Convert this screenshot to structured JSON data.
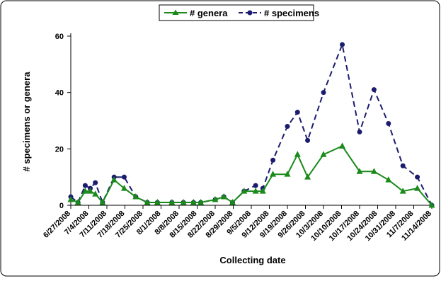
{
  "chart_data": {
    "type": "line",
    "title": "",
    "xlabel": "Collecting date",
    "ylabel": "# specimens or genera",
    "ylim": [
      0,
      60
    ],
    "yticks": [
      0,
      20,
      40,
      60
    ],
    "grid": false,
    "legend_position": "top-center",
    "x_tick_labels": [
      "6/27/2008",
      "7/4/2008",
      "7/11/2008",
      "7/18/2008",
      "7/25/2008",
      "8/1/2008",
      "8/8/2008",
      "8/15/2008",
      "8/22/2008",
      "8/29/2008",
      "9/5/2008",
      "9/12/2008",
      "9/19/2008",
      "9/26/2008",
      "10/3/2008",
      "10/10/2008",
      "10/17/2008",
      "10/24/2008",
      "10/31/2008",
      "11/7/2008",
      "11/14/2008"
    ],
    "series": [
      {
        "name": "# genera",
        "color": "#1a8a1a",
        "marker": "triangle",
        "line_style": "solid",
        "points": [
          [
            0,
            2
          ],
          [
            0.5,
            1
          ],
          [
            1,
            5
          ],
          [
            1.35,
            5
          ],
          [
            1.7,
            4
          ],
          [
            2.2,
            1
          ],
          [
            3,
            9
          ],
          [
            3.7,
            6
          ],
          [
            4.5,
            3
          ],
          [
            5.3,
            1
          ],
          [
            6,
            1
          ],
          [
            7,
            1
          ],
          [
            7.8,
            1
          ],
          [
            8.5,
            1
          ],
          [
            9,
            1
          ],
          [
            10,
            2
          ],
          [
            10.6,
            3
          ],
          [
            11.2,
            1
          ],
          [
            12,
            5
          ],
          [
            12.8,
            5
          ],
          [
            13.3,
            5
          ],
          [
            14,
            11
          ],
          [
            15,
            11
          ],
          [
            15.7,
            18
          ],
          [
            16.4,
            10
          ],
          [
            17.5,
            18
          ],
          [
            18.8,
            21
          ],
          [
            20,
            12
          ],
          [
            21,
            12
          ],
          [
            22,
            9
          ],
          [
            23,
            5
          ],
          [
            24,
            6
          ],
          [
            25,
            0
          ]
        ]
      },
      {
        "name": "# specimens",
        "color": "#1c1c6e",
        "marker": "circle",
        "line_style": "dashed",
        "points": [
          [
            0,
            3
          ],
          [
            0.5,
            1
          ],
          [
            1,
            7
          ],
          [
            1.35,
            6
          ],
          [
            1.7,
            8
          ],
          [
            2.2,
            1
          ],
          [
            3,
            10
          ],
          [
            3.7,
            10
          ],
          [
            4.5,
            3
          ],
          [
            5.3,
            1
          ],
          [
            6,
            1
          ],
          [
            7,
            1
          ],
          [
            7.8,
            1
          ],
          [
            8.5,
            1
          ],
          [
            9,
            1
          ],
          [
            10,
            2
          ],
          [
            10.6,
            3
          ],
          [
            11.2,
            1
          ],
          [
            12,
            5
          ],
          [
            12.8,
            7
          ],
          [
            13.3,
            6
          ],
          [
            14,
            16
          ],
          [
            15,
            28
          ],
          [
            15.7,
            33
          ],
          [
            16.4,
            23
          ],
          [
            17.5,
            40
          ],
          [
            18.8,
            57
          ],
          [
            20,
            26
          ],
          [
            21,
            41
          ],
          [
            22,
            29
          ],
          [
            23,
            14
          ],
          [
            24,
            10
          ],
          [
            25,
            0
          ]
        ]
      }
    ]
  }
}
